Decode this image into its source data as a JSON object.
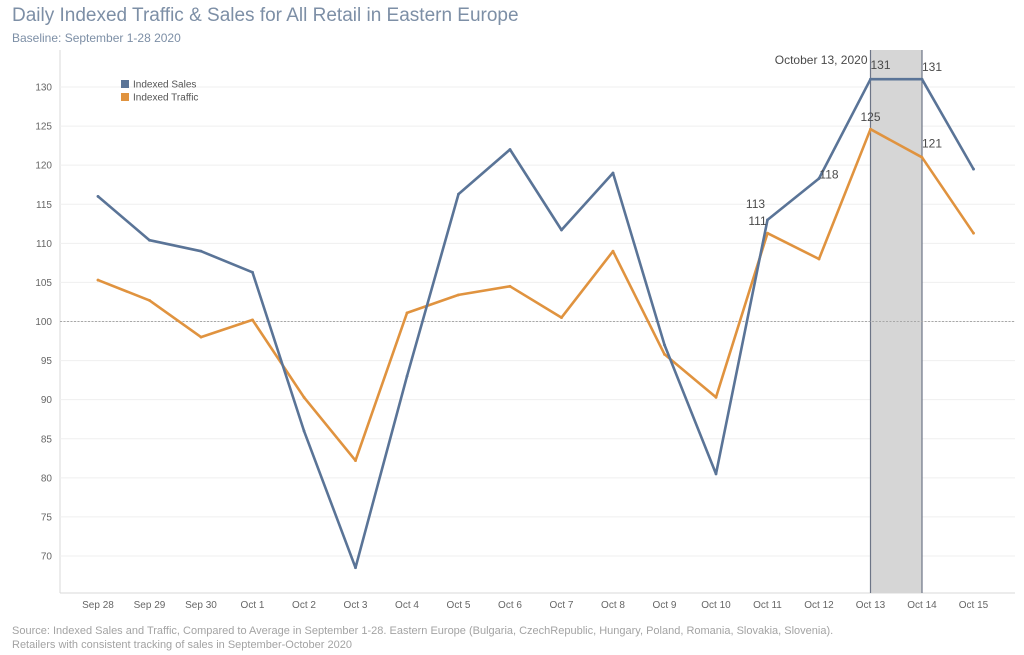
{
  "header": {
    "title": "Daily Indexed Traffic & Sales for All Retail in Eastern Europe",
    "subtitle": "Baseline: September 1-28 2020"
  },
  "footer": {
    "source_line1": "Source: Indexed Sales and Traffic, Compared to Average in September 1-28. Eastern Europe (Bulgaria, CzechRepublic, Hungary, Poland, Romania, Slovakia, Slovenia).",
    "source_line2": "Retailers with consistent tracking of sales in September-October 2020"
  },
  "chart_data": {
    "type": "line",
    "title": "Daily Indexed Traffic & Sales for All Retail in Eastern Europe",
    "subtitle": "Baseline: September 1-28 2020",
    "categories": [
      "Sep 28",
      "Sep 29",
      "Sep 30",
      "Oct 1",
      "Oct 2",
      "Oct 3",
      "Oct 4",
      "Oct 5",
      "Oct 6",
      "Oct 7",
      "Oct 8",
      "Oct 9",
      "Oct 10",
      "Oct 11",
      "Oct 12",
      "Oct 13",
      "Oct 14",
      "Oct 15"
    ],
    "series": [
      {
        "name": "Indexed Sales",
        "color": "#5a7497",
        "values": [
          116,
          110.4,
          109,
          106.3,
          86,
          68.5,
          93,
          116.3,
          122,
          111.7,
          119,
          97,
          80.5,
          113,
          118.3,
          131,
          131,
          119.5
        ]
      },
      {
        "name": "Indexed Traffic",
        "color": "#e0933f",
        "values": [
          105.3,
          102.7,
          98,
          100.2,
          90.3,
          82.2,
          101.1,
          103.4,
          104.5,
          100.5,
          109,
          95.8,
          90.3,
          111.3,
          108,
          124.6,
          121,
          111.3
        ]
      }
    ],
    "ylim": [
      66,
      134
    ],
    "yticks": [
      70,
      75,
      80,
      85,
      90,
      95,
      100,
      105,
      110,
      115,
      120,
      125,
      130
    ],
    "reference_line": 100,
    "highlight": {
      "from": "Oct 13",
      "to": "Oct 14",
      "label": "October 13, 2020"
    },
    "data_labels": [
      {
        "series": "Indexed Sales",
        "category": "Oct 11",
        "text": "113"
      },
      {
        "series": "Indexed Traffic",
        "category": "Oct 11",
        "text": "111"
      },
      {
        "series": "Indexed Sales",
        "category": "Oct 12",
        "text": "118"
      },
      {
        "series": "Indexed Sales",
        "category": "Oct 13",
        "text": "131"
      },
      {
        "series": "Indexed Traffic",
        "category": "Oct 13",
        "text": "125"
      },
      {
        "series": "Indexed Sales",
        "category": "Oct 14",
        "text": "131"
      },
      {
        "series": "Indexed Traffic",
        "category": "Oct 14",
        "text": "121"
      }
    ],
    "legend": {
      "position": "top-left",
      "entries": [
        "Indexed Sales",
        "Indexed Traffic"
      ]
    },
    "grid": true
  }
}
